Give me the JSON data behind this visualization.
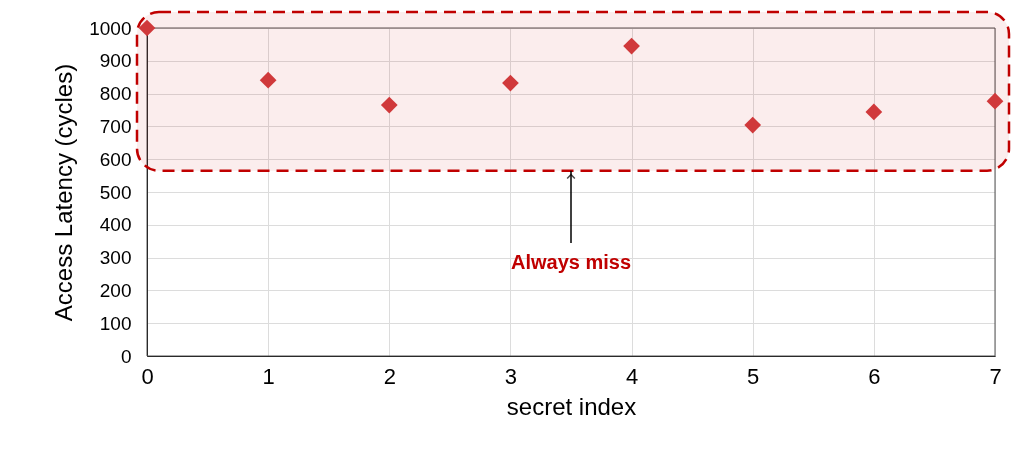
{
  "chart_data": {
    "type": "scatter",
    "xlabel": "secret index",
    "ylabel": "Access Latency (cycles)",
    "x": [
      0,
      1,
      2,
      3,
      4,
      5,
      6,
      7
    ],
    "series": [
      {
        "color": "#d0393b",
        "values": [
          1000,
          841,
          765,
          832,
          945,
          704,
          744,
          777
        ]
      }
    ],
    "xlim": [
      0,
      7
    ],
    "xticks": [
      0,
      1,
      2,
      3,
      4,
      5,
      6,
      7
    ],
    "ylim": [
      0,
      1000
    ],
    "yticks": [
      0,
      100,
      200,
      300,
      400,
      500,
      600,
      700,
      800,
      900,
      1000
    ],
    "grid": true,
    "marker": "diamond",
    "bands": [
      {
        "axis": "y",
        "from": 565,
        "to": 1000,
        "label": "Always miss",
        "color": "#c00000"
      }
    ]
  }
}
